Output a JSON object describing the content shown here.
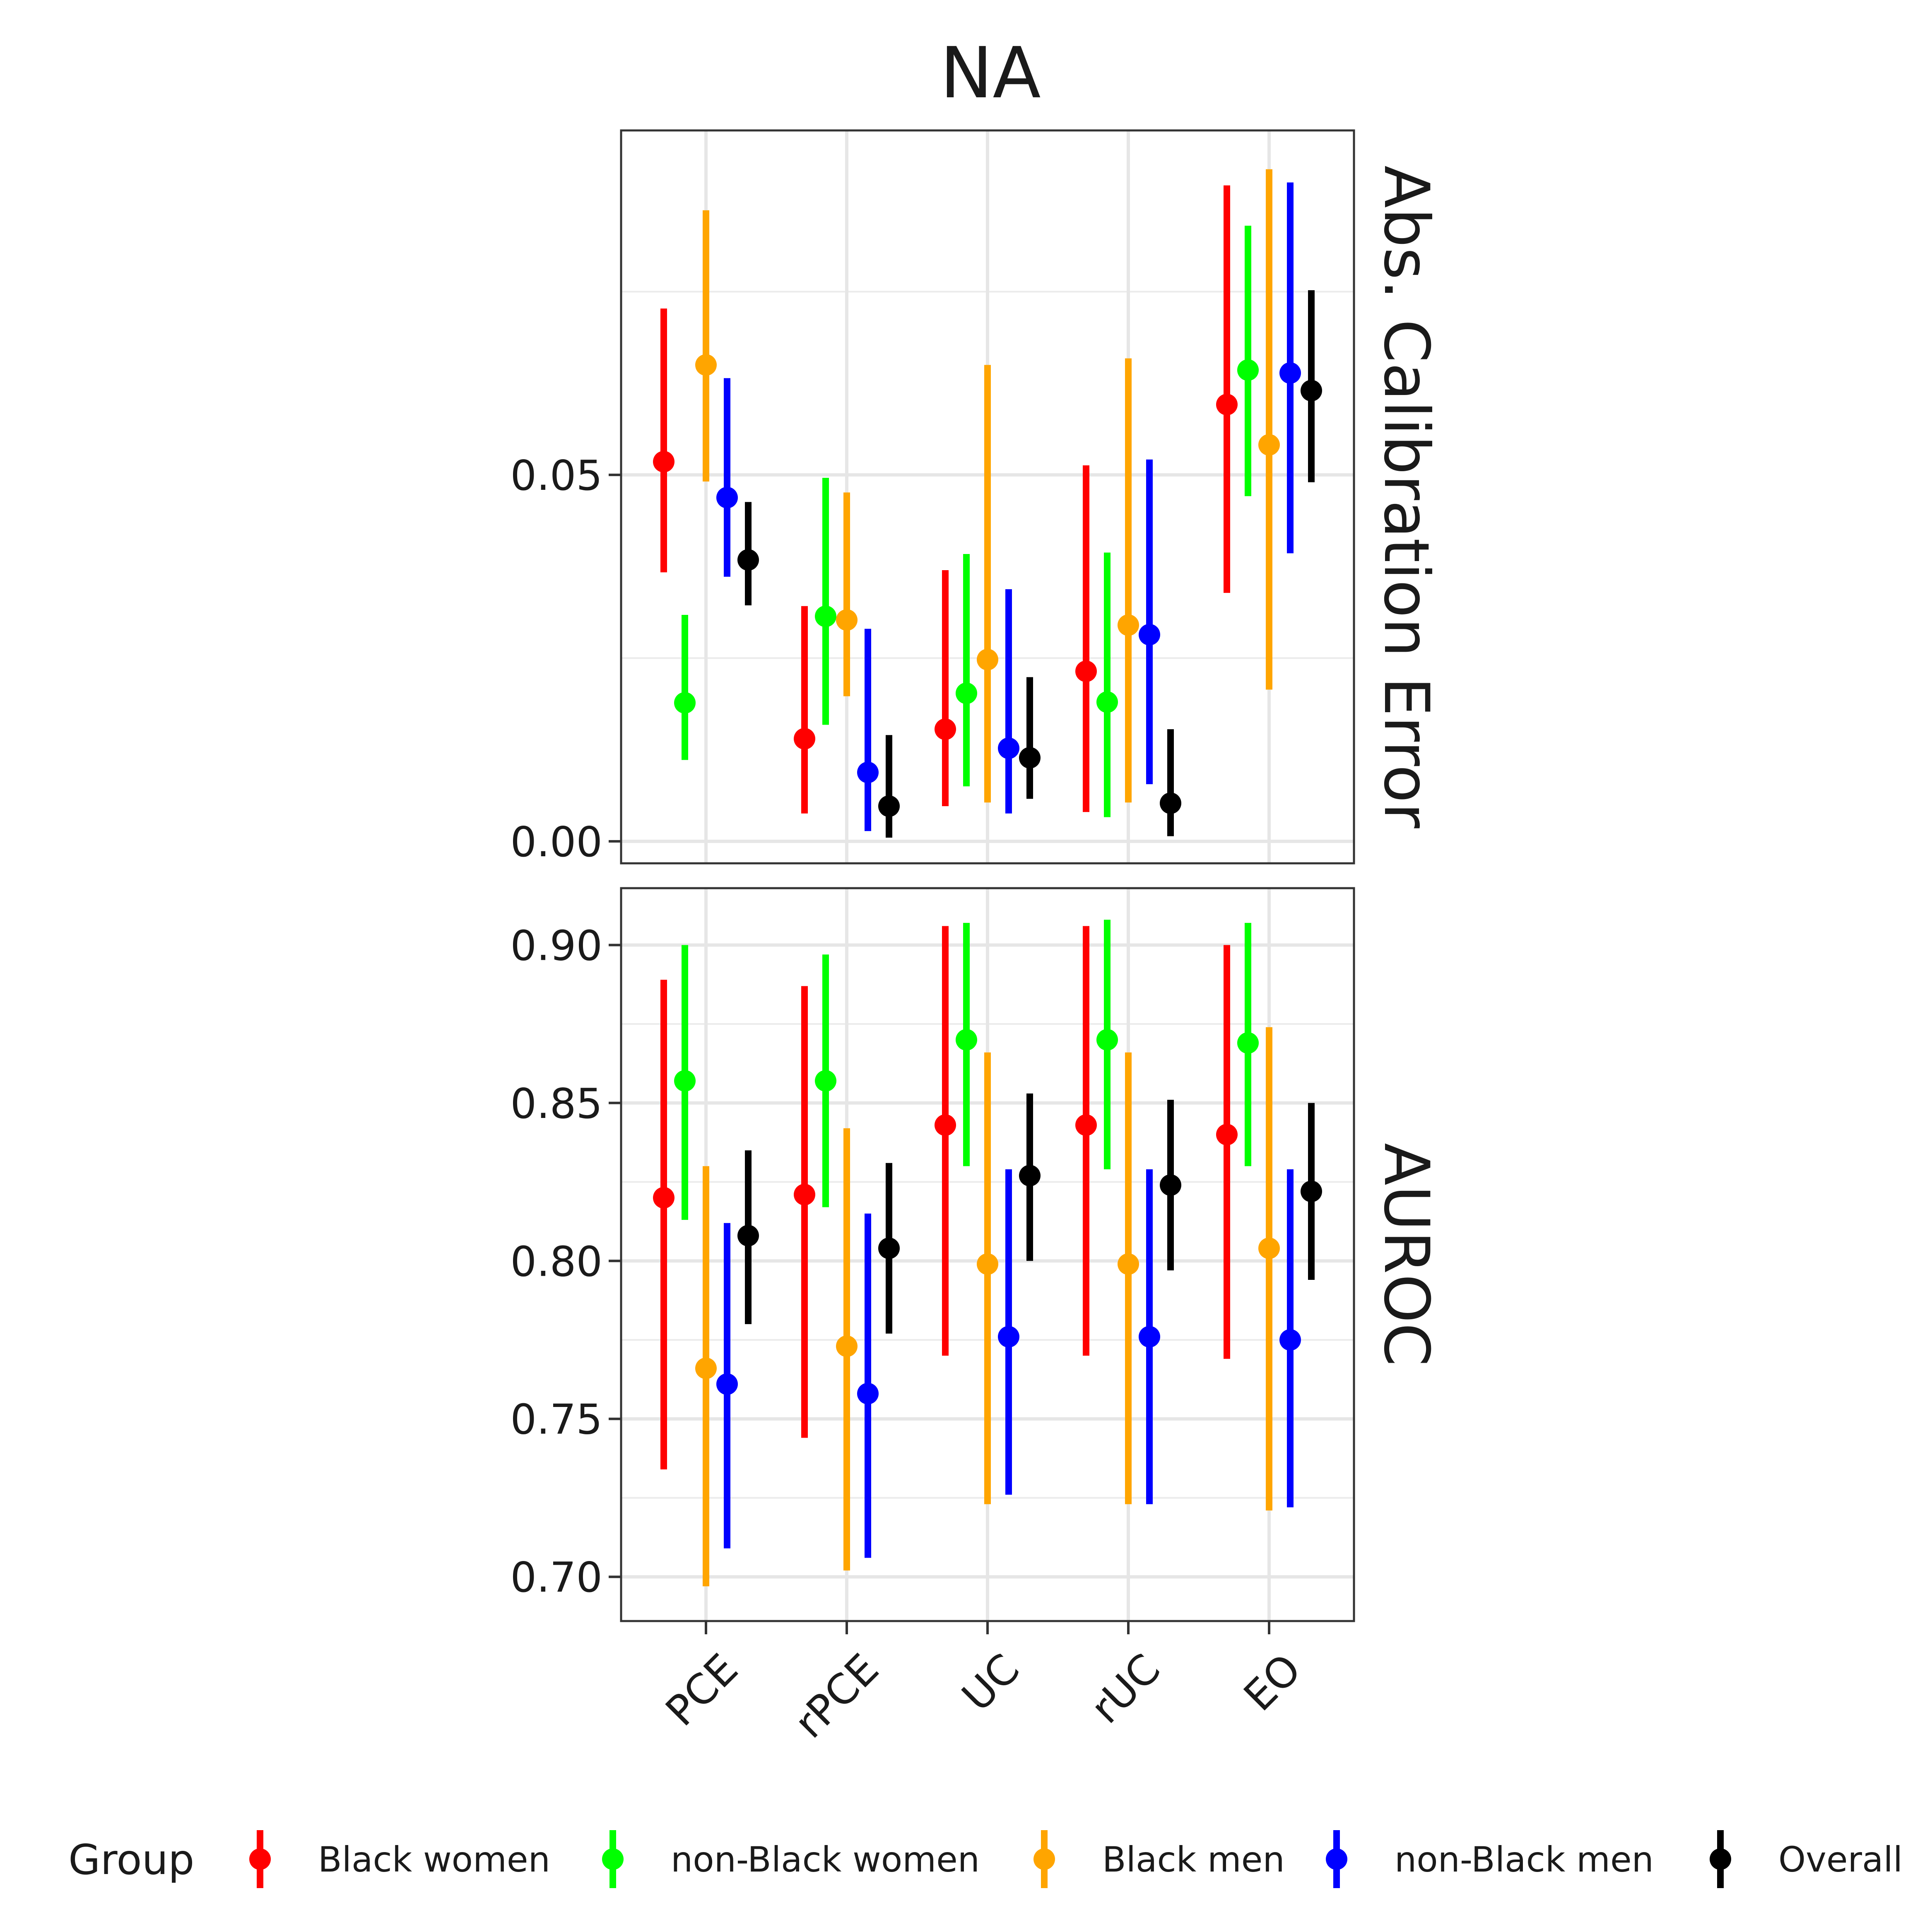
{
  "chart_data": {
    "type": "pointrange",
    "title": "NA",
    "categories": [
      "PCE",
      "rPCE",
      "UC",
      "rUC",
      "EO"
    ],
    "legend": {
      "title": "Group",
      "position": "bottom"
    },
    "series": [
      {
        "name": "Black women",
        "color": "#ff0000"
      },
      {
        "name": "non-Black women",
        "color": "#00ff00"
      },
      {
        "name": "Black men",
        "color": "#ffa500"
      },
      {
        "name": "non-Black men",
        "color": "#0000ff"
      },
      {
        "name": "Overall",
        "color": "#000000"
      }
    ],
    "panels": [
      {
        "strip_label": "Abs. Calibration Error",
        "ylim": [
          -0.003,
          0.097
        ],
        "yticks": [
          0.0,
          0.05
        ],
        "ytick_labels": [
          "0.00",
          "0.05"
        ],
        "grid_minor": [
          0.025,
          0.075
        ],
        "values": [
          [
            0.0518,
            0.0189,
            0.065,
            0.0469,
            0.0384
          ],
          [
            0.014,
            0.0307,
            0.0302,
            0.0094,
            0.0048
          ],
          [
            0.0153,
            0.0202,
            0.0248,
            0.0127,
            0.0114
          ],
          [
            0.0232,
            0.019,
            0.0295,
            0.0282,
            0.0052
          ],
          [
            0.0596,
            0.0643,
            0.0541,
            0.0639,
            0.0615
          ]
        ],
        "lower": [
          [
            0.0367,
            0.0111,
            0.0491,
            0.0361,
            0.0322
          ],
          [
            0.0038,
            0.0159,
            0.0198,
            0.0014,
            0.0005
          ],
          [
            0.0048,
            0.0075,
            0.0053,
            0.0038,
            0.0058
          ],
          [
            0.004,
            0.0033,
            0.0053,
            0.0078,
            0.0007
          ],
          [
            0.0339,
            0.0471,
            0.0207,
            0.0393,
            0.049
          ]
        ],
        "upper": [
          [
            0.0727,
            0.0309,
            0.0861,
            0.0632,
            0.0463
          ],
          [
            0.0321,
            0.0496,
            0.0476,
            0.029,
            0.0145
          ],
          [
            0.037,
            0.0392,
            0.065,
            0.0344,
            0.0224
          ],
          [
            0.0513,
            0.0394,
            0.0659,
            0.0521,
            0.0153
          ],
          [
            0.0895,
            0.084,
            0.0917,
            0.0899,
            0.0752
          ]
        ]
      },
      {
        "strip_label": "AUROC",
        "ylim": [
          0.686,
          0.918
        ],
        "yticks": [
          0.7,
          0.75,
          0.8,
          0.85,
          0.9
        ],
        "ytick_labels": [
          "0.70",
          "0.75",
          "0.80",
          "0.85",
          "0.90"
        ],
        "grid_minor": [
          0.725,
          0.775,
          0.825,
          0.875
        ],
        "values": [
          [
            0.82,
            0.857,
            0.766,
            0.761,
            0.808
          ],
          [
            0.821,
            0.857,
            0.773,
            0.758,
            0.804
          ],
          [
            0.843,
            0.87,
            0.799,
            0.776,
            0.827
          ],
          [
            0.843,
            0.87,
            0.799,
            0.776,
            0.824
          ],
          [
            0.84,
            0.869,
            0.804,
            0.775,
            0.822
          ]
        ],
        "lower": [
          [
            0.734,
            0.813,
            0.697,
            0.709,
            0.78
          ],
          [
            0.744,
            0.817,
            0.702,
            0.706,
            0.777
          ],
          [
            0.77,
            0.83,
            0.723,
            0.726,
            0.8
          ],
          [
            0.77,
            0.829,
            0.723,
            0.723,
            0.797
          ],
          [
            0.769,
            0.83,
            0.721,
            0.722,
            0.794
          ]
        ],
        "upper": [
          [
            0.889,
            0.9,
            0.83,
            0.812,
            0.835
          ],
          [
            0.887,
            0.897,
            0.842,
            0.815,
            0.831
          ],
          [
            0.906,
            0.907,
            0.866,
            0.829,
            0.853
          ],
          [
            0.906,
            0.908,
            0.866,
            0.829,
            0.851
          ],
          [
            0.9,
            0.907,
            0.874,
            0.829,
            0.85
          ]
        ]
      }
    ]
  }
}
